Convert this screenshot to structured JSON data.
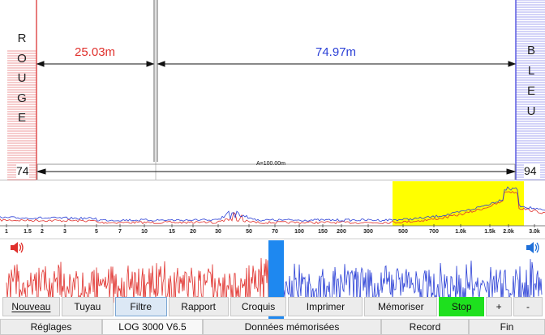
{
  "pipe": {
    "left_letters": [
      "R",
      "O",
      "U",
      "G",
      "E"
    ],
    "right_letters": [
      "B",
      "L",
      "E",
      "U"
    ],
    "left_distance": "25.03m",
    "right_distance": "74.97m",
    "left_value": "74",
    "right_value": "94",
    "total_length": "A=100.00m",
    "left_color": "#e0302c",
    "right_color": "#2a3fd6"
  },
  "spectrum": {
    "ticks": [
      "1",
      "1.5",
      "2",
      "3",
      "5",
      "7",
      "10",
      "15",
      "20",
      "30",
      "50",
      "70",
      "100",
      "150",
      "200",
      "300",
      "500",
      "700",
      "1.0k",
      "1.5k",
      "2.0k",
      "3.0k"
    ],
    "highlight_color": "#ffff00"
  },
  "toolbar": {
    "buttons": [
      "Nouveau",
      "Tuyau",
      "Filtre",
      "Rapport",
      "Croquis",
      "Imprimer",
      "Mémoriser",
      "Stop",
      "+",
      "-"
    ]
  },
  "tabs": [
    "Réglages",
    "LOG 3000 V6.5",
    "Données mémorisées",
    "Record",
    "Fin"
  ],
  "icons": {
    "left_speaker": "speaker-icon",
    "right_speaker": "speaker-icon"
  }
}
